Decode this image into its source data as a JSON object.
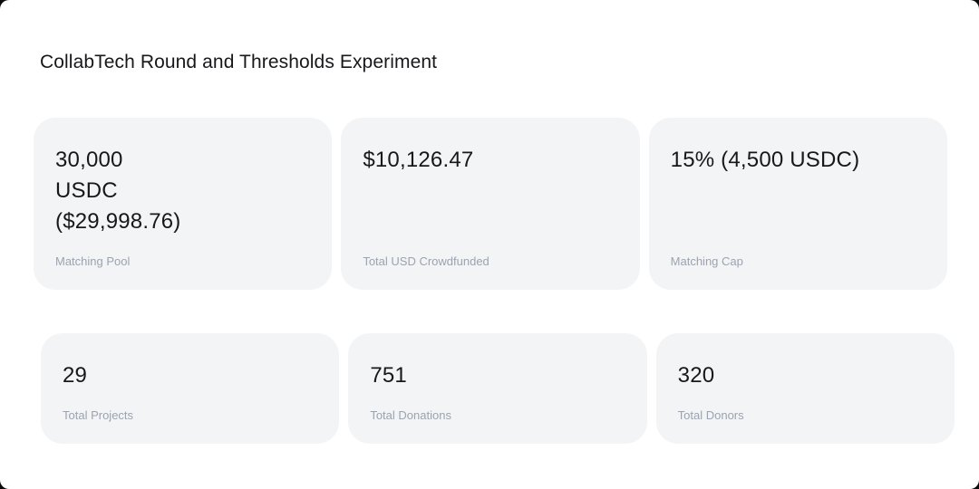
{
  "header": {
    "title": "CollabTech Round and Thresholds Experiment"
  },
  "colors": {
    "page_bg": "#ffffff",
    "card_bg": "#f3f4f6",
    "value_text": "#18181b",
    "label_text": "#9ca3af"
  },
  "stats": {
    "row1": [
      {
        "value": "30,000\nUSDC\n($29,998.76)",
        "label": "Matching Pool"
      },
      {
        "value": "$10,126.47",
        "label": "Total USD Crowdfunded"
      },
      {
        "value": "15% (4,500 USDC)",
        "label": "Matching Cap"
      }
    ],
    "row2": [
      {
        "value": "29",
        "label": "Total Projects"
      },
      {
        "value": "751",
        "label": "Total Donations"
      },
      {
        "value": "320",
        "label": "Total Donors"
      }
    ]
  }
}
